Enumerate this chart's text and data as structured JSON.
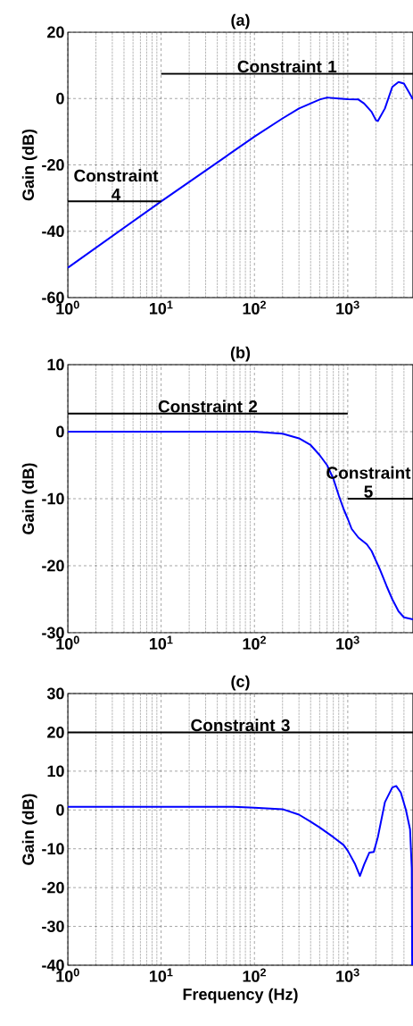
{
  "chart_data": [
    {
      "type": "line",
      "title": "(a)",
      "ylabel": "Gain (dB)",
      "xlim": [
        1,
        5000
      ],
      "ylim": [
        -60,
        20
      ],
      "xticks": [
        {
          "value": 1,
          "label": "10$^{0}$"
        },
        {
          "value": 10,
          "label": "10$^{1}$"
        },
        {
          "value": 100,
          "label": "10$^{2}$"
        },
        {
          "value": 1000,
          "label": "10$^{3}$"
        }
      ],
      "yticks": [
        -60,
        -40,
        -20,
        0,
        20
      ],
      "log": "x",
      "grid": true,
      "legend": false,
      "series": [
        {
          "color": "#0000ff",
          "x": [
            1,
            10,
            100,
            200,
            300,
            500,
            600,
            800,
            1000,
            1300,
            1500,
            1800,
            2000,
            2100,
            2500,
            3000,
            3500,
            4000,
            4500,
            5000
          ],
          "values": [
            -51,
            -31,
            -11.5,
            -6,
            -3,
            -0.3,
            0.3,
            0,
            -0.2,
            -0.3,
            -1.5,
            -4,
            -6.5,
            -6.8,
            -3,
            3.5,
            5,
            4.5,
            2,
            -0.3
          ]
        },
        {
          "name": "Constraint 1",
          "color": "#000000",
          "x": [
            10,
            5000
          ],
          "values": [
            7.5,
            7.5
          ]
        },
        {
          "name": "Constraint 4",
          "color": "#000000",
          "x": [
            1,
            10
          ],
          "values": [
            -31,
            -31
          ]
        }
      ]
    },
    {
      "type": "line",
      "title": "(b)",
      "ylabel": "Gain (dB)",
      "xlim": [
        1,
        5000
      ],
      "ylim": [
        -30,
        10
      ],
      "xticks": [
        {
          "value": 1,
          "label": "10$^{0}$"
        },
        {
          "value": 10,
          "label": "10$^{1}$"
        },
        {
          "value": 100,
          "label": "10$^{2}$"
        },
        {
          "value": 1000,
          "label": "10$^{3}$"
        }
      ],
      "yticks": [
        -30,
        -20,
        -10,
        0,
        10
      ],
      "log": "x",
      "grid": true,
      "legend": false,
      "series": [
        {
          "color": "#0000ff",
          "x": [
            1,
            10,
            100,
            200,
            300,
            400,
            500,
            600,
            700,
            800,
            900,
            1000,
            1100,
            1300,
            1600,
            1800,
            2200,
            2600,
            3000,
            3500,
            4000,
            5000
          ],
          "values": [
            0,
            0,
            0,
            -0.3,
            -1,
            -2,
            -3.5,
            -5,
            -7,
            -9.5,
            -11.5,
            -13,
            -14.5,
            -15.8,
            -16.8,
            -17.8,
            -20.5,
            -23,
            -25,
            -26.8,
            -27.7,
            -28
          ]
        },
        {
          "name": "Constraint 2",
          "color": "#000000",
          "x": [
            1,
            1000
          ],
          "values": [
            2.7,
            2.7
          ]
        },
        {
          "name": "Constraint 5",
          "color": "#000000",
          "x": [
            1000,
            5000
          ],
          "values": [
            -10,
            -10
          ]
        }
      ]
    },
    {
      "type": "line",
      "title": "(c)",
      "xlabel": "Frequency (Hz)",
      "ylabel": "Gain (dB)",
      "xlim": [
        1,
        5000
      ],
      "ylim": [
        -40,
        30
      ],
      "xticks": [
        {
          "value": 1,
          "label": "10$^{0}$"
        },
        {
          "value": 10,
          "label": "10$^{1}$"
        },
        {
          "value": 100,
          "label": "10$^{2}$"
        },
        {
          "value": 1000,
          "label": "10$^{3}$"
        }
      ],
      "yticks": [
        -40,
        -30,
        -20,
        -10,
        0,
        10,
        20,
        30
      ],
      "log": "x",
      "grid": true,
      "legend": false,
      "series": [
        {
          "color": "#0000ff",
          "x": [
            1,
            10,
            60,
            100,
            200,
            300,
            400,
            500,
            700,
            900,
            1000,
            1200,
            1350,
            1500,
            1700,
            1900,
            2100,
            2500,
            3000,
            3300,
            3700,
            4200,
            4650,
            4850,
            4900
          ],
          "values": [
            0.8,
            0.8,
            0.8,
            0.6,
            0.2,
            -1.2,
            -3,
            -4.5,
            -7,
            -9,
            -10.5,
            -14,
            -17,
            -14,
            -11,
            -10.8,
            -7,
            2,
            5.8,
            6.2,
            4.5,
            0,
            -5,
            -15,
            -40
          ]
        },
        {
          "name": "Constraint 3",
          "color": "#000000",
          "x": [
            1,
            5000
          ],
          "values": [
            20,
            20
          ]
        }
      ]
    }
  ]
}
